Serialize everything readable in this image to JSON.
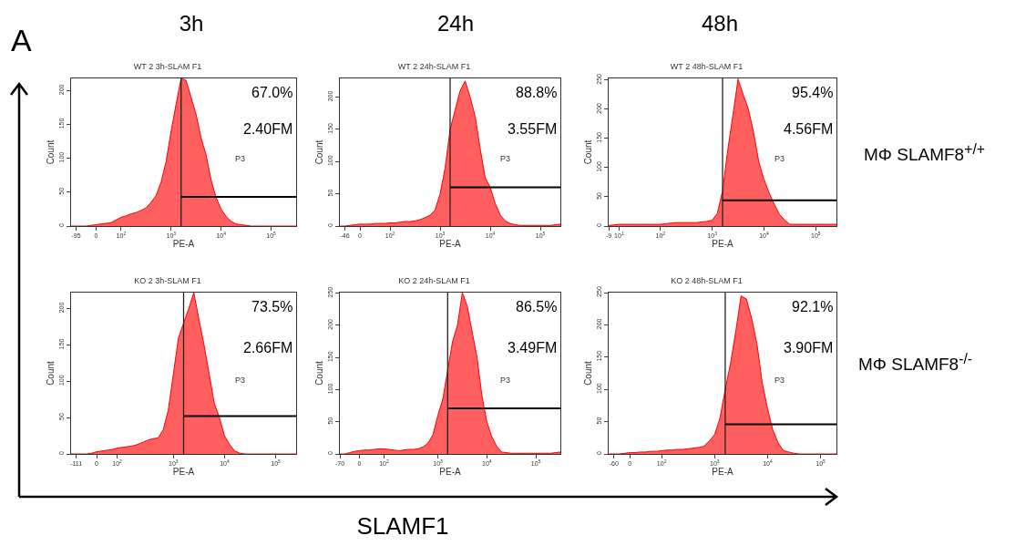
{
  "chart_data": [
    {
      "type": "area",
      "title": "WT 2 3h-SLAM F1",
      "xlabel": "PE-A",
      "ylabel": "Count",
      "ylim": [
        0,
        218
      ],
      "yticks": [
        0,
        50,
        100,
        150,
        200
      ],
      "categories": [
        null,
        "-95",
        null,
        null,
        null,
        "0",
        null,
        null,
        null,
        null,
        "10$^{2}$",
        null,
        null,
        null,
        null,
        null,
        null,
        null,
        null,
        null,
        "10$^{3}$",
        null,
        null,
        null,
        null,
        null,
        null,
        null,
        null,
        null,
        "10$^{4}$",
        null,
        null,
        null,
        null,
        null,
        null,
        null,
        null,
        null,
        "10$^{5}$",
        null,
        null,
        null,
        null,
        null
      ],
      "series": [
        {
          "type": "area",
          "color": "#ff0000",
          "values": [
            0,
            0,
            0,
            0,
            1,
            2,
            3,
            4,
            5,
            9,
            13,
            15,
            18,
            20,
            23,
            27,
            35,
            45,
            65,
            95,
            140,
            180,
            218,
            215,
            190,
            165,
            130,
            105,
            68,
            42,
            25,
            14,
            7,
            3,
            2,
            1,
            0,
            0,
            0,
            0,
            0,
            0,
            0,
            0,
            0,
            0
          ]
        },
        {
          "type": "line",
          "color": "#000000",
          "values": [
            null,
            null,
            null,
            null,
            null,
            null,
            null,
            null,
            null,
            null,
            null,
            null,
            null,
            null,
            null,
            null,
            null,
            null,
            null,
            null,
            null,
            null,
            43,
            43,
            43,
            43,
            43,
            43,
            43,
            43,
            43,
            43,
            43,
            43,
            43,
            43,
            43,
            43,
            43,
            43,
            43,
            43,
            43,
            43,
            43,
            43
          ]
        }
      ],
      "annotations": [
        "67.0%",
        "2.40FM",
        "P3"
      ]
    },
    {
      "type": "area",
      "title": "WT 2 24h-SLAM F1",
      "xlabel": "PE-A",
      "ylabel": "Count",
      "ylim": [
        0,
        229
      ],
      "yticks": [
        0,
        50,
        100,
        150,
        200
      ],
      "categories": [
        null,
        "-46",
        null,
        null,
        "0",
        null,
        null,
        null,
        null,
        null,
        "10$^{2}$",
        null,
        null,
        null,
        null,
        null,
        null,
        null,
        null,
        null,
        "10$^{3}$",
        null,
        null,
        null,
        null,
        null,
        null,
        null,
        null,
        null,
        "10$^{4}$",
        null,
        null,
        null,
        null,
        null,
        null,
        null,
        null,
        null,
        "10$^{5}$",
        null,
        null,
        null,
        null
      ],
      "series": [
        {
          "type": "area",
          "color": "#ff0000",
          "values": [
            0,
            0,
            1,
            2,
            3,
            3,
            3,
            4,
            4,
            4,
            5,
            5,
            6,
            7,
            7,
            8,
            10,
            13,
            17,
            25,
            50,
            90,
            150,
            180,
            210,
            225,
            200,
            170,
            120,
            75,
            60,
            35,
            17,
            8,
            4,
            2,
            1,
            1,
            1,
            1,
            1,
            1,
            1,
            2,
            3
          ]
        },
        {
          "type": "line",
          "color": "#000000",
          "values": [
            null,
            null,
            null,
            null,
            null,
            null,
            null,
            null,
            null,
            null,
            null,
            null,
            null,
            null,
            null,
            null,
            null,
            null,
            null,
            null,
            null,
            null,
            60,
            60,
            60,
            60,
            60,
            60,
            60,
            60,
            60,
            60,
            60,
            60,
            60,
            60,
            60,
            60,
            60,
            60,
            60,
            60,
            60,
            60,
            60
          ]
        }
      ],
      "annotations": [
        "88.8%",
        "3.55FM",
        "P3"
      ]
    },
    {
      "type": "area",
      "title": "WT 2 48h-SLAM F1",
      "xlabel": "PE-A",
      "ylabel": "Count",
      "ylim": [
        0,
        253
      ],
      "yticks": [
        0,
        50,
        100,
        150,
        200,
        250
      ],
      "categories": [
        "-9",
        null,
        "10$^{1}$",
        null,
        null,
        null,
        null,
        null,
        null,
        null,
        "10$^{2}$",
        null,
        null,
        null,
        null,
        null,
        null,
        null,
        null,
        null,
        "10$^{3}$",
        null,
        null,
        null,
        null,
        null,
        null,
        null,
        null,
        null,
        "10$^{4}$",
        null,
        null,
        null,
        null,
        null,
        null,
        null,
        null,
        null,
        "10$^{5}$",
        null,
        null,
        null,
        null
      ],
      "series": [
        {
          "type": "area",
          "color": "#ff0000",
          "values": [
            1,
            2,
            3,
            3,
            3,
            3,
            3,
            3,
            3,
            3,
            3,
            4,
            5,
            6,
            6,
            6,
            6,
            6,
            7,
            8,
            10,
            22,
            60,
            130,
            190,
            252,
            225,
            200,
            160,
            110,
            80,
            57,
            37,
            20,
            10,
            3,
            3,
            3,
            3,
            3,
            3,
            3,
            3,
            3,
            3
          ]
        },
        {
          "type": "line",
          "color": "#000000",
          "values": [
            null,
            null,
            null,
            null,
            null,
            null,
            null,
            null,
            null,
            null,
            null,
            null,
            null,
            null,
            null,
            null,
            null,
            null,
            null,
            null,
            null,
            null,
            44,
            44,
            44,
            44,
            44,
            44,
            44,
            44,
            44,
            44,
            44,
            44,
            44,
            44,
            44,
            44,
            44,
            44,
            44,
            44,
            44,
            44,
            44
          ]
        }
      ],
      "annotations": [
        "95.4%",
        "4.56FM",
        "P3"
      ]
    },
    {
      "type": "area",
      "title": "KO 2 3h-SLAM F1",
      "xlabel": "PE-A",
      "ylabel": "Count",
      "ylim": [
        0,
        222
      ],
      "yticks": [
        0,
        50,
        100,
        150,
        200
      ],
      "categories": [
        null,
        "-111",
        null,
        null,
        null,
        "0",
        null,
        null,
        null,
        "10$^{2}$",
        null,
        null,
        null,
        null,
        null,
        null,
        null,
        null,
        null,
        null,
        "10$^{3}$",
        null,
        null,
        null,
        null,
        null,
        null,
        null,
        null,
        null,
        "10$^{4}$",
        null,
        null,
        null,
        null,
        null,
        null,
        null,
        null,
        null,
        "10$^{5}$",
        null,
        null,
        null,
        null
      ],
      "series": [
        {
          "type": "area",
          "color": "#ff0000",
          "values": [
            0,
            0,
            0,
            0,
            1,
            3,
            4,
            5,
            6,
            8,
            9,
            10,
            11,
            13,
            16,
            19,
            21,
            22,
            33,
            60,
            110,
            160,
            180,
            200,
            222,
            185,
            150,
            110,
            70,
            50,
            25,
            13,
            4,
            1,
            0,
            0,
            0,
            0,
            0,
            0,
            0,
            0,
            0,
            0,
            0
          ]
        },
        {
          "type": "line",
          "color": "#000000",
          "values": [
            null,
            null,
            null,
            null,
            null,
            null,
            null,
            null,
            null,
            null,
            null,
            null,
            null,
            null,
            null,
            null,
            null,
            null,
            null,
            null,
            null,
            null,
            52,
            52,
            52,
            52,
            52,
            52,
            52,
            52,
            52,
            52,
            52,
            52,
            52,
            52,
            52,
            52,
            52,
            52,
            52,
            52,
            52,
            52,
            52
          ]
        }
      ],
      "annotations": [
        "73.5%",
        "2.66FM",
        "P3"
      ]
    },
    {
      "type": "area",
      "title": "KO 2 24h-SLAM F1",
      "xlabel": "PE-A",
      "ylabel": "Count",
      "ylim": [
        0,
        251
      ],
      "yticks": [
        0,
        50,
        100,
        150,
        200,
        250
      ],
      "categories": [
        "-70",
        null,
        null,
        null,
        "0",
        null,
        null,
        null,
        null,
        "10$^{2}$",
        null,
        null,
        null,
        null,
        null,
        null,
        null,
        null,
        null,
        null,
        "10$^{3}$",
        null,
        null,
        null,
        null,
        null,
        null,
        null,
        null,
        null,
        "10$^{4}$",
        null,
        null,
        null,
        null,
        null,
        null,
        null,
        null,
        null,
        "10$^{5}$",
        null,
        null,
        null,
        null,
        null
      ],
      "series": [
        {
          "type": "area",
          "color": "#ff0000",
          "values": [
            0,
            0,
            2,
            4,
            5,
            6,
            6,
            7,
            8,
            8,
            7,
            6,
            5,
            6,
            7,
            7,
            8,
            11,
            17,
            30,
            60,
            85,
            130,
            175,
            200,
            251,
            230,
            190,
            150,
            90,
            50,
            27,
            12,
            3,
            2,
            1,
            1,
            1,
            1,
            1,
            1,
            1,
            1,
            1,
            2,
            3
          ]
        },
        {
          "type": "line",
          "color": "#000000",
          "values": [
            null,
            null,
            null,
            null,
            null,
            null,
            null,
            null,
            null,
            null,
            null,
            null,
            null,
            null,
            null,
            null,
            null,
            null,
            null,
            null,
            null,
            null,
            71,
            71,
            71,
            71,
            71,
            71,
            71,
            71,
            71,
            71,
            71,
            71,
            71,
            71,
            71,
            71,
            71,
            71,
            71,
            71,
            71,
            71,
            71,
            71
          ]
        }
      ],
      "annotations": [
        "86.5%",
        "3.49FM",
        "P3"
      ]
    },
    {
      "type": "area",
      "title": "KO 2 48h-SLAM F1",
      "xlabel": "PE-A",
      "ylabel": "Count",
      "ylim": [
        0,
        250
      ],
      "yticks": [
        0,
        50,
        100,
        150,
        200,
        250
      ],
      "categories": [
        null,
        "-60",
        null,
        null,
        "0",
        null,
        null,
        null,
        null,
        null,
        "10$^{2}$",
        null,
        null,
        null,
        null,
        null,
        null,
        null,
        null,
        null,
        "10$^{3}$",
        null,
        null,
        null,
        null,
        null,
        null,
        null,
        null,
        null,
        "10$^{4}$",
        null,
        null,
        null,
        null,
        null,
        null,
        null,
        null,
        null,
        "10$^{5}$",
        null,
        null,
        null
      ],
      "series": [
        {
          "type": "area",
          "color": "#ff0000",
          "values": [
            0,
            0,
            0,
            1,
            2,
            2,
            3,
            3,
            4,
            4,
            5,
            6,
            6,
            7,
            7,
            8,
            9,
            10,
            12,
            20,
            30,
            55,
            100,
            140,
            190,
            245,
            240,
            210,
            170,
            110,
            70,
            37,
            17,
            5,
            3,
            1,
            0,
            0,
            0,
            0,
            0,
            0,
            0,
            0
          ]
        },
        {
          "type": "line",
          "color": "#000000",
          "values": [
            null,
            null,
            null,
            null,
            null,
            null,
            null,
            null,
            null,
            null,
            null,
            null,
            null,
            null,
            null,
            null,
            null,
            null,
            null,
            null,
            null,
            null,
            46,
            46,
            46,
            46,
            46,
            46,
            46,
            46,
            46,
            46,
            46,
            46,
            46,
            46,
            46,
            46,
            46,
            46,
            46,
            46,
            46,
            46
          ]
        }
      ],
      "annotations": [
        "92.1%",
        "3.90FM",
        "P3"
      ]
    },
    {
      "type": "other",
      "annotations": [
        "A",
        "3h",
        "24h",
        "48h",
        "MΦ SLAMF8$^{+/+}$",
        "MΦ SLAMF8$^{-/-}$",
        "SLAMF1"
      ]
    }
  ]
}
